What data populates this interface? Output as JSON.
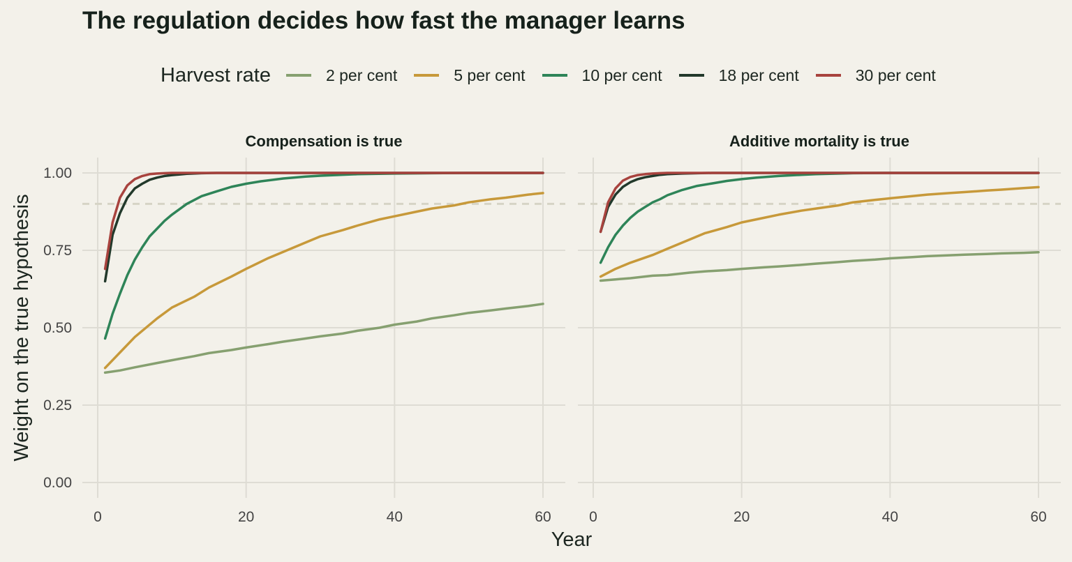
{
  "chart_data": [
    {
      "type": "line",
      "panel": "Compensation is true",
      "title": "The regulation decides how fast the manager learns",
      "xlabel": "Year",
      "ylabel": "Weight on the true hypothesis",
      "xlim": [
        1,
        60
      ],
      "ylim": [
        0,
        1
      ],
      "x_ticks": [
        0,
        20,
        40,
        60
      ],
      "y_ticks": [
        "0.00",
        "0.25",
        "0.50",
        "0.75",
        "1.00"
      ],
      "reference_line": 0.9,
      "grid": true,
      "legend_position": "top",
      "legend_title": "Harvest rate",
      "series": [
        {
          "name": "2 per cent",
          "color": "#86a070",
          "x": [
            1,
            3,
            5,
            8,
            10,
            13,
            15,
            18,
            20,
            23,
            25,
            28,
            30,
            33,
            35,
            38,
            40,
            43,
            45,
            48,
            50,
            53,
            55,
            58,
            60
          ],
          "y": [
            0.355,
            0.362,
            0.372,
            0.386,
            0.395,
            0.408,
            0.418,
            0.428,
            0.436,
            0.447,
            0.455,
            0.465,
            0.472,
            0.481,
            0.49,
            0.5,
            0.51,
            0.52,
            0.53,
            0.54,
            0.548,
            0.556,
            0.562,
            0.57,
            0.577
          ]
        },
        {
          "name": "5 per cent",
          "color": "#c7993a",
          "x": [
            1,
            3,
            5,
            8,
            10,
            13,
            15,
            18,
            20,
            23,
            25,
            28,
            30,
            33,
            35,
            38,
            40,
            43,
            45,
            48,
            50,
            53,
            55,
            58,
            60
          ],
          "y": [
            0.37,
            0.42,
            0.47,
            0.53,
            0.565,
            0.6,
            0.63,
            0.665,
            0.69,
            0.725,
            0.745,
            0.775,
            0.795,
            0.815,
            0.83,
            0.85,
            0.86,
            0.875,
            0.885,
            0.895,
            0.905,
            0.915,
            0.92,
            0.93,
            0.935
          ]
        },
        {
          "name": "10 per cent",
          "color": "#2e8458",
          "x": [
            1,
            2,
            3,
            4,
            5,
            6,
            7,
            8,
            9,
            10,
            12,
            14,
            16,
            18,
            20,
            22,
            25,
            28,
            30,
            35,
            40,
            45,
            50,
            55,
            60
          ],
          "y": [
            0.465,
            0.545,
            0.61,
            0.67,
            0.72,
            0.76,
            0.795,
            0.82,
            0.845,
            0.865,
            0.9,
            0.925,
            0.94,
            0.955,
            0.965,
            0.973,
            0.982,
            0.988,
            0.991,
            0.996,
            0.998,
            0.999,
            1.0,
            1.0,
            1.0
          ]
        },
        {
          "name": "18 per cent",
          "color": "#22392b",
          "x": [
            1,
            2,
            3,
            4,
            5,
            6,
            7,
            8,
            9,
            10,
            12,
            14,
            16,
            20,
            30,
            40,
            50,
            60
          ],
          "y": [
            0.65,
            0.8,
            0.87,
            0.92,
            0.95,
            0.965,
            0.978,
            0.985,
            0.99,
            0.993,
            0.997,
            0.999,
            1.0,
            1.0,
            1.0,
            1.0,
            1.0,
            1.0
          ]
        },
        {
          "name": "30 per cent",
          "color": "#a8433e",
          "x": [
            1,
            2,
            3,
            4,
            5,
            6,
            7,
            8,
            9,
            10,
            12,
            14,
            20,
            30,
            40,
            50,
            60
          ],
          "y": [
            0.69,
            0.84,
            0.92,
            0.96,
            0.98,
            0.99,
            0.996,
            0.998,
            0.999,
            1.0,
            1.0,
            1.0,
            1.0,
            1.0,
            1.0,
            1.0,
            1.0
          ]
        }
      ]
    },
    {
      "type": "line",
      "panel": "Additive mortality is true",
      "xlim": [
        1,
        60
      ],
      "ylim": [
        0,
        1
      ],
      "x_ticks": [
        0,
        20,
        40,
        60
      ],
      "reference_line": 0.9,
      "series": [
        {
          "name": "2 per cent",
          "color": "#86a070",
          "x": [
            1,
            3,
            5,
            8,
            10,
            13,
            15,
            18,
            20,
            23,
            25,
            28,
            30,
            33,
            35,
            38,
            40,
            43,
            45,
            48,
            50,
            53,
            55,
            58,
            60
          ],
          "y": [
            0.652,
            0.656,
            0.66,
            0.668,
            0.67,
            0.678,
            0.682,
            0.686,
            0.69,
            0.695,
            0.698,
            0.703,
            0.707,
            0.712,
            0.716,
            0.72,
            0.724,
            0.728,
            0.731,
            0.734,
            0.736,
            0.738,
            0.74,
            0.742,
            0.744
          ]
        },
        {
          "name": "5 per cent",
          "color": "#c7993a",
          "x": [
            1,
            3,
            5,
            8,
            10,
            13,
            15,
            18,
            20,
            23,
            25,
            28,
            30,
            33,
            35,
            38,
            40,
            43,
            45,
            48,
            50,
            53,
            55,
            58,
            60
          ],
          "y": [
            0.665,
            0.69,
            0.71,
            0.735,
            0.755,
            0.785,
            0.805,
            0.825,
            0.84,
            0.855,
            0.865,
            0.878,
            0.885,
            0.895,
            0.905,
            0.913,
            0.918,
            0.925,
            0.93,
            0.935,
            0.938,
            0.943,
            0.946,
            0.951,
            0.954
          ]
        },
        {
          "name": "10 per cent",
          "color": "#2e8458",
          "x": [
            1,
            2,
            3,
            4,
            5,
            6,
            7,
            8,
            9,
            10,
            12,
            14,
            16,
            18,
            20,
            22,
            25,
            28,
            30,
            35,
            40,
            45,
            50,
            55,
            60
          ],
          "y": [
            0.71,
            0.76,
            0.8,
            0.83,
            0.855,
            0.875,
            0.89,
            0.905,
            0.915,
            0.928,
            0.945,
            0.958,
            0.966,
            0.974,
            0.98,
            0.985,
            0.99,
            0.994,
            0.996,
            0.999,
            1.0,
            1.0,
            1.0,
            1.0,
            1.0
          ]
        },
        {
          "name": "18 per cent",
          "color": "#22392b",
          "x": [
            1,
            2,
            3,
            4,
            5,
            6,
            7,
            8,
            9,
            10,
            12,
            14,
            16,
            20,
            30,
            40,
            50,
            60
          ],
          "y": [
            0.81,
            0.89,
            0.93,
            0.955,
            0.97,
            0.98,
            0.986,
            0.99,
            0.994,
            0.996,
            0.998,
            0.999,
            1.0,
            1.0,
            1.0,
            1.0,
            1.0,
            1.0
          ]
        },
        {
          "name": "30 per cent",
          "color": "#a8433e",
          "x": [
            1,
            2,
            3,
            4,
            5,
            6,
            7,
            8,
            9,
            10,
            12,
            14,
            20,
            30,
            40,
            50,
            60
          ],
          "y": [
            0.81,
            0.905,
            0.95,
            0.975,
            0.987,
            0.993,
            0.996,
            0.998,
            0.999,
            1.0,
            1.0,
            1.0,
            1.0,
            1.0,
            1.0,
            1.0,
            1.0
          ]
        }
      ]
    }
  ]
}
